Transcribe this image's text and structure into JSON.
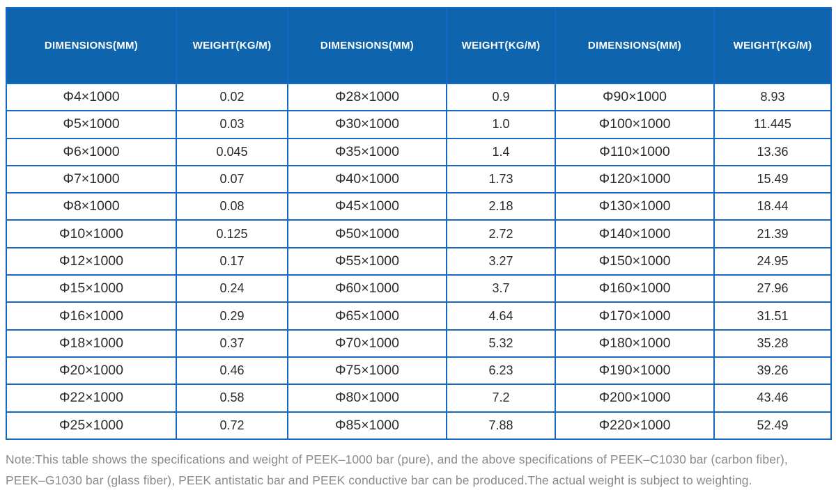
{
  "table": {
    "columns": [
      "DIMENSIONS(MM)",
      "WEIGHT(KG/M)",
      "DIMENSIONS(MM)",
      "WEIGHT(KG/M)",
      "DIMENSIONS(MM)",
      "WEIGHT(KG/M)"
    ],
    "rows": [
      [
        "Φ4×1000",
        "0.02",
        "Φ28×1000",
        "0.9",
        "Φ90×1000",
        "8.93"
      ],
      [
        "Φ5×1000",
        "0.03",
        "Φ30×1000",
        "1.0",
        "Φ100×1000",
        "11.445"
      ],
      [
        "Φ6×1000",
        "0.045",
        "Φ35×1000",
        "1.4",
        "Φ110×1000",
        "13.36"
      ],
      [
        "Φ7×1000",
        "0.07",
        "Φ40×1000",
        "1.73",
        "Φ120×1000",
        "15.49"
      ],
      [
        "Φ8×1000",
        "0.08",
        "Φ45×1000",
        "2.18",
        "Φ130×1000",
        "18.44"
      ],
      [
        "Φ10×1000",
        "0.125",
        "Φ50×1000",
        "2.72",
        "Φ140×1000",
        "21.39"
      ],
      [
        "Φ12×1000",
        "0.17",
        "Φ55×1000",
        "3.27",
        "Φ150×1000",
        "24.95"
      ],
      [
        "Φ15×1000",
        "0.24",
        "Φ60×1000",
        "3.7",
        "Φ160×1000",
        "27.96"
      ],
      [
        "Φ16×1000",
        "0.29",
        "Φ65×1000",
        "4.64",
        "Φ170×1000",
        "31.51"
      ],
      [
        "Φ18×1000",
        "0.37",
        "Φ70×1000",
        "5.32",
        "Φ180×1000",
        "35.28"
      ],
      [
        "Φ20×1000",
        "0.46",
        "Φ75×1000",
        "6.23",
        "Φ190×1000",
        "39.26"
      ],
      [
        "Φ22×1000",
        "0.58",
        "Φ80×1000",
        "7.2",
        "Φ200×1000",
        "43.46"
      ],
      [
        "Φ25×1000",
        "0.72",
        "Φ85×1000",
        "7.88",
        "Φ220×1000",
        "52.49"
      ]
    ]
  },
  "note": {
    "lines": [
      "Note:This table shows the specifications and weight of PEEK–1000 bar (pure), and the above specifications of PEEK–C1030 bar (carbon fiber),",
      "PEEK–G1030 bar (glass fiber), PEEK antistatic bar and PEEK conductive bar can be produced.The actual weight is subject to weighting."
    ]
  },
  "colors": {
    "header_bg": "#0e65ae",
    "header_text": "#ffffff",
    "grid_border": "#1669c2",
    "cell_text": "#2b2b2b",
    "note_text": "#8b8b8b"
  }
}
